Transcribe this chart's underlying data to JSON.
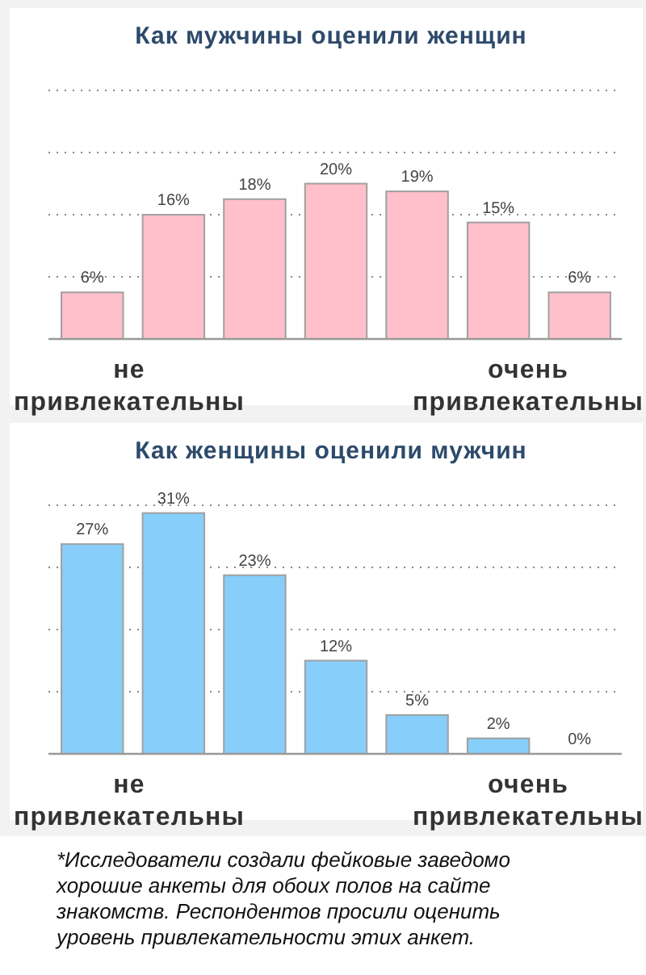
{
  "chart_data": [
    {
      "type": "bar",
      "title": "Как мужчины оценили женщин",
      "categories": [
        null,
        null,
        null,
        null,
        null,
        null,
        null
      ],
      "values": [
        6,
        16,
        18,
        20,
        19,
        15,
        6
      ],
      "value_labels": [
        "6%",
        "16%",
        "18%",
        "20%",
        "19%",
        "15%",
        "6%"
      ],
      "color": "#ffc0cb",
      "ylim": [
        0,
        32
      ],
      "yticks": [
        {
          "value": 8,
          "label": null
        },
        {
          "value": 16,
          "label": null
        },
        {
          "value": 24,
          "label": null
        },
        {
          "value": 32,
          "label": null
        }
      ],
      "grid": "y",
      "annotations": [
        "не привлекательны",
        "очень привлекательны"
      ]
    },
    {
      "type": "bar",
      "title": "Как женщины оценили мужчин",
      "categories": [
        null,
        null,
        null,
        null,
        null,
        null,
        null
      ],
      "values": [
        27,
        31,
        23,
        12,
        5,
        2,
        0
      ],
      "value_labels": [
        "27%",
        "31%",
        "23%",
        "12%",
        "5%",
        "2%",
        "0%"
      ],
      "color": "#87cefa",
      "ylim": [
        0,
        32
      ],
      "yticks": [
        {
          "value": 8,
          "label": null
        },
        {
          "value": 16,
          "label": null
        },
        {
          "value": 24,
          "label": null
        },
        {
          "value": 32,
          "label": null
        }
      ],
      "grid": "y",
      "annotations": [
        "не привлекательны",
        "очень привлекательны",
        "*Исследователи создали фейковые заведомо хорошие анкеты для обоих полов на сайте знакомств. Респондентов просили оценить уровень привлекательности этих анкет."
      ]
    }
  ]
}
